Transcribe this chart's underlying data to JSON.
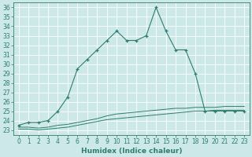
{
  "xlabel": "Humidex (Indice chaleur)",
  "background_color": "#cde8e8",
  "line_color": "#2e7d6e",
  "xlim_min": -0.5,
  "xlim_max": 23.5,
  "ylim_min": 22.5,
  "ylim_max": 36.5,
  "x": [
    0,
    1,
    2,
    3,
    4,
    5,
    6,
    7,
    8,
    9,
    10,
    11,
    12,
    13,
    14,
    15,
    16,
    17,
    18,
    19,
    20,
    21,
    22,
    23
  ],
  "y_main": [
    23.5,
    23.8,
    23.8,
    24.0,
    25.0,
    26.5,
    29.5,
    30.5,
    31.5,
    32.5,
    33.5,
    32.5,
    32.5,
    33.0,
    36.0,
    33.5,
    31.5,
    31.5,
    29.0,
    25.0,
    25.0,
    25.0,
    25.0,
    25.0
  ],
  "y_line2": [
    23.3,
    23.3,
    23.2,
    23.3,
    23.5,
    23.6,
    23.8,
    24.0,
    24.2,
    24.5,
    24.7,
    24.8,
    24.9,
    25.0,
    25.1,
    25.2,
    25.3,
    25.3,
    25.4,
    25.4,
    25.4,
    25.5,
    25.5,
    25.5
  ],
  "y_line3": [
    23.1,
    23.1,
    23.0,
    23.1,
    23.2,
    23.3,
    23.5,
    23.7,
    23.9,
    24.1,
    24.2,
    24.3,
    24.4,
    24.5,
    24.6,
    24.7,
    24.8,
    24.9,
    25.0,
    25.0,
    25.1,
    25.1,
    25.1,
    25.1
  ],
  "yticks": [
    23,
    24,
    25,
    26,
    27,
    28,
    29,
    30,
    31,
    32,
    33,
    34,
    35,
    36
  ],
  "grid_color": "#b8d8d8",
  "tick_fontsize": 5.5,
  "xlabel_fontsize": 6.5
}
